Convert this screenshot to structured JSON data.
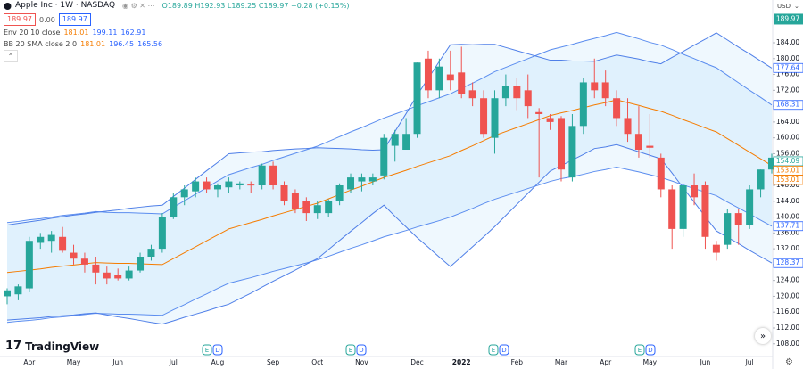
{
  "header": {
    "symbol": "Apple Inc · 1W · NASDAQ",
    "ohlc": "O189.89 H192.93 L189.25 C189.97 +0.28 (+0.15%)",
    "price_boxes": [
      "189.97",
      "0.00",
      "189.97"
    ],
    "indicators": [
      {
        "name": "Env 20 10 close",
        "values": [
          "181.01",
          "199.11",
          "162.91"
        ]
      },
      {
        "name": "BB 20 SMA close 2 0",
        "values": [
          "181.01",
          "196.45",
          "165.56"
        ]
      }
    ],
    "currency": "USD"
  },
  "watermark": "TradingView",
  "event_markers": [
    "E",
    "D",
    "E",
    "D",
    "E",
    "D",
    "E",
    "D"
  ],
  "chart_data": {
    "type": "candlestick",
    "categories": [
      null,
      null,
      "Apr",
      null,
      null,
      null,
      "May",
      null,
      null,
      null,
      "Jun",
      null,
      null,
      null,
      null,
      "Jul",
      null,
      null,
      null,
      "Aug",
      null,
      null,
      null,
      null,
      "Sep",
      null,
      null,
      null,
      "Oct",
      null,
      null,
      null,
      "Nov",
      null,
      null,
      null,
      null,
      "Dec",
      null,
      null,
      null,
      "2022",
      null,
      null,
      null,
      null,
      "Feb",
      null,
      null,
      null,
      "Mar",
      null,
      null,
      null,
      "Apr",
      null,
      null,
      null,
      "May",
      null,
      null,
      null,
      null,
      "Jun",
      null,
      null,
      null,
      "Jul",
      null,
      null
    ],
    "open": [
      120,
      120.5,
      122,
      133.5,
      134,
      135,
      131,
      129.5,
      128,
      126,
      125.5,
      124.5,
      126.5,
      130,
      132,
      140,
      145,
      146.5,
      149,
      147,
      147.5,
      148,
      148.2,
      148,
      153,
      148,
      146,
      144,
      141,
      141,
      144,
      147,
      149,
      149,
      150.5,
      158,
      157,
      161,
      180,
      172,
      176,
      176.5,
      172,
      170,
      160,
      170,
      173,
      172,
      166.5,
      165,
      165,
      150,
      163,
      174,
      174,
      170,
      165,
      161,
      158,
      155,
      147,
      137,
      148,
      148,
      133,
      133,
      141,
      138,
      147,
      152
    ],
    "high": [
      122,
      123,
      135,
      136,
      136.5,
      137.5,
      133,
      131,
      130,
      127.5,
      127,
      127.5,
      131,
      133,
      141,
      146,
      148,
      150,
      150,
      148.5,
      150,
      149,
      149,
      153.5,
      154,
      149,
      147,
      145,
      144,
      144.5,
      148.5,
      151,
      151,
      151,
      161,
      162,
      165,
      179,
      182,
      180,
      182,
      183,
      174,
      172,
      172,
      176,
      175,
      176,
      167.5,
      166,
      165.5,
      166,
      175,
      180,
      177,
      172,
      170,
      168,
      166,
      156,
      148,
      148,
      151,
      149,
      134,
      142,
      142,
      148,
      152,
      156
    ],
    "low": [
      118,
      119,
      121,
      132,
      131,
      131,
      128,
      126,
      123,
      123,
      124,
      124,
      126,
      129,
      131,
      139.5,
      143,
      145,
      146,
      145,
      146,
      147,
      146,
      147,
      147,
      143,
      141,
      139,
      139.5,
      140,
      143,
      146,
      146.5,
      148,
      149.5,
      154,
      157,
      160,
      170,
      170,
      172,
      170,
      168,
      160,
      156,
      168,
      167,
      165,
      150,
      162,
      149,
      149,
      161,
      170,
      168,
      163,
      159,
      155,
      155,
      145,
      132,
      135,
      143,
      132,
      129,
      132,
      133,
      137,
      145,
      151
    ],
    "close": [
      121.5,
      122.5,
      134,
      135,
      135.5,
      131.5,
      129.5,
      128,
      126,
      124.5,
      124.5,
      126.5,
      130,
      132,
      140,
      145,
      147,
      149,
      147,
      148,
      149,
      148.5,
      148,
      153,
      148,
      144,
      142,
      141,
      143,
      144,
      148,
      150,
      150,
      150,
      160,
      161,
      161,
      179,
      172,
      178,
      174.5,
      171,
      170,
      161,
      170,
      173,
      170,
      168,
      166,
      164,
      152,
      163,
      174,
      172,
      170,
      165,
      161,
      157,
      157.5,
      147,
      137,
      148,
      145,
      135,
      131,
      141,
      138,
      147,
      152,
      155
    ],
    "up_color": "#26a69a",
    "down_color": "#ef5350",
    "band_fill": "rgba(33,150,243,0.07)",
    "series": [
      {
        "color": "#f57c00",
        "values": [
          126,
          126.3,
          126.6,
          126.9,
          127.3,
          127.6,
          127.9,
          128.2,
          128.5,
          128.4,
          128.3,
          128.3,
          128.2,
          128.1,
          128,
          129.5,
          131,
          132.5,
          134,
          135.5,
          137,
          137.8,
          138.6,
          139.4,
          140.3,
          141.1,
          141.9,
          142.7,
          143.5,
          144.6,
          145.7,
          146.8,
          147.8,
          148.9,
          150,
          150.9,
          151.8,
          152.8,
          153.7,
          154.6,
          155.5,
          156.8,
          158,
          159.3,
          160.6,
          161.6,
          162.6,
          163.6,
          164.6,
          165.6,
          166.3,
          166.9,
          167.6,
          168.3,
          168.9,
          169.6,
          168.9,
          168.2,
          167.4,
          166.7,
          165.7,
          164.6,
          163.6,
          162.5,
          161.5,
          159.8,
          158.1,
          156.4,
          154.7,
          153
        ]
      },
      {
        "color": "#5b8def",
        "values": [
          138.6,
          138.9,
          139.3,
          139.6,
          140,
          140.4,
          140.7,
          141,
          141.4,
          141.2,
          141.1,
          141.1,
          141,
          140.9,
          140.8,
          142.5,
          144.1,
          145.8,
          147.4,
          149.1,
          150.7,
          151.6,
          152.5,
          153.3,
          154.3,
          155.2,
          156.1,
          157,
          157.9,
          159.1,
          160.3,
          161.5,
          162.6,
          163.8,
          165,
          166,
          167,
          168.1,
          169.1,
          170.1,
          171.1,
          172.5,
          173.8,
          175.2,
          176.7,
          177.8,
          178.9,
          180,
          181.1,
          182.2,
          182.9,
          183.6,
          184.4,
          185.1,
          185.8,
          186.6,
          185.8,
          185,
          184.1,
          183.4,
          182.3,
          181.1,
          180,
          178.8,
          177.7,
          175.8,
          173.9,
          172,
          170.2,
          168.3
        ]
      },
      {
        "color": "#5b8def",
        "values": [
          113.4,
          113.7,
          113.9,
          114.2,
          114.6,
          114.8,
          115.1,
          115.4,
          115.7,
          115.6,
          115.5,
          115.5,
          115.4,
          115.3,
          115.2,
          116.6,
          117.9,
          119.3,
          120.6,
          122,
          123.3,
          124,
          124.7,
          125.5,
          126.3,
          127,
          127.7,
          128.4,
          129.2,
          130.1,
          131.1,
          132.1,
          133,
          134,
          135,
          135.8,
          136.6,
          137.5,
          138.3,
          139.1,
          140,
          141.1,
          142.2,
          143.4,
          144.5,
          145.4,
          146.3,
          147.2,
          148.1,
          149,
          149.7,
          150.2,
          150.8,
          151.5,
          152,
          152.6,
          152,
          151.4,
          150.7,
          150,
          149.1,
          148.1,
          147.2,
          146.3,
          145.4,
          143.8,
          142.3,
          140.8,
          139.2,
          137.7
        ]
      },
      {
        "color": "#4f7fe8",
        "values": [
          138,
          138.4,
          138.8,
          139.2,
          139.7,
          140.1,
          140.5,
          140.8,
          141.2,
          141.5,
          141.8,
          142.2,
          142.5,
          142.8,
          143,
          145.2,
          147.3,
          149.5,
          151.7,
          153.8,
          156,
          156.2,
          156.4,
          156.5,
          156.8,
          157,
          157.2,
          157.3,
          157.5,
          157.4,
          157.3,
          157.2,
          157,
          156.9,
          157,
          161.6,
          166.1,
          170.8,
          175,
          179.3,
          183.5,
          183.6,
          183.5,
          183.6,
          183.6,
          182.8,
          182,
          181.2,
          180.4,
          179.6,
          179.6,
          179.4,
          179.4,
          179.3,
          180.1,
          180.9,
          180.4,
          179.9,
          179.2,
          178.7,
          180.3,
          181.8,
          183.4,
          184.9,
          186.5,
          184.7,
          182.9,
          181.2,
          179.4,
          177.6
        ]
      },
      {
        "color": "#4f7fe8",
        "values": [
          114,
          114.2,
          114.4,
          114.6,
          114.9,
          115.1,
          115.3,
          115.6,
          115.8,
          115.3,
          114.8,
          114.4,
          113.9,
          113.4,
          113,
          113.8,
          114.7,
          115.5,
          116.3,
          117.2,
          118,
          119.4,
          120.8,
          122.3,
          123.8,
          125.2,
          126.6,
          128.1,
          129.5,
          131.8,
          134.1,
          136.4,
          138.6,
          140.9,
          143,
          140.2,
          137.5,
          134.8,
          132.4,
          129.9,
          127.5,
          130,
          132.5,
          135,
          137.6,
          140.4,
          143.2,
          146,
          148.8,
          151.6,
          153,
          154.4,
          155.8,
          157.3,
          157.7,
          158.3,
          157.4,
          156.5,
          155.6,
          154.7,
          151.1,
          147.4,
          143.8,
          140.1,
          136.5,
          134.9,
          133.3,
          131.6,
          130,
          128.4
        ]
      }
    ],
    "ylim": [
      104.8,
      194.8
    ],
    "yticks": [
      {
        "value": 108,
        "label": "108.00"
      },
      {
        "value": 112,
        "label": "112.00"
      },
      {
        "value": 116,
        "label": "116.00"
      },
      {
        "value": 120,
        "label": "120.00"
      },
      {
        "value": 124,
        "label": "124.00"
      },
      {
        "value": 128,
        "label": "128.00"
      },
      {
        "value": 132,
        "label": "132.00"
      },
      {
        "value": 136,
        "label": "136.00"
      },
      {
        "value": 140,
        "label": "140.00"
      },
      {
        "value": 144,
        "label": "144.00"
      },
      {
        "value": 148,
        "label": "148.00"
      },
      {
        "value": 152,
        "label": "152.00"
      },
      {
        "value": 156,
        "label": "156.00"
      },
      {
        "value": 160,
        "label": "160.00"
      },
      {
        "value": 164,
        "label": "164.00"
      },
      {
        "value": 168,
        "label": "168.00"
      },
      {
        "value": 172,
        "label": "172.00"
      },
      {
        "value": 176,
        "label": "176.00"
      },
      {
        "value": 180,
        "label": "180.00"
      },
      {
        "value": 184,
        "label": "184.00"
      }
    ],
    "grid": false,
    "last_price": {
      "value": 189.97,
      "color": "#26a69a"
    },
    "price_labels": [
      {
        "value": 177.64,
        "color": "#2962ff"
      },
      {
        "value": 168.31,
        "color": "#2962ff"
      },
      {
        "value": 154.09,
        "color": "#26a69a"
      },
      {
        "value": 153.01,
        "color": "#f57c00"
      },
      {
        "value": 153.01,
        "color": "#f57c00"
      },
      {
        "value": 137.71,
        "color": "#2962ff"
      },
      {
        "value": 128.37,
        "color": "#2962ff"
      }
    ]
  }
}
